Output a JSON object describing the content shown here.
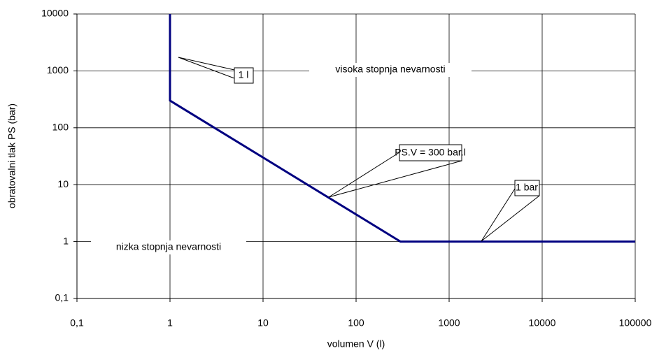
{
  "chart_data": {
    "type": "line",
    "x_label": "volumen V (l)",
    "y_label": "obratovalni tlak PS (bar)",
    "x": [
      1,
      1,
      300,
      100000
    ],
    "values": [
      10000,
      300,
      1,
      1
    ],
    "color": "#000080",
    "xlog": true,
    "ylog": true,
    "grid": true,
    "xlim": [
      0.1,
      100000
    ],
    "ylim": [
      0.1,
      10000
    ],
    "xticks": [
      {
        "value": 0.1,
        "label": "0,1"
      },
      1,
      10,
      100,
      1000,
      10000,
      100000
    ],
    "yticks": [
      {
        "value": 0.1,
        "label": "0,1"
      },
      1,
      10,
      100,
      1000,
      10000
    ],
    "annotations": [
      "1 l",
      "visoka stopnja nevarnosti",
      "PS.V = 300 bar.l",
      "1 bar",
      "nizka stopnja nevarnosti"
    ]
  }
}
